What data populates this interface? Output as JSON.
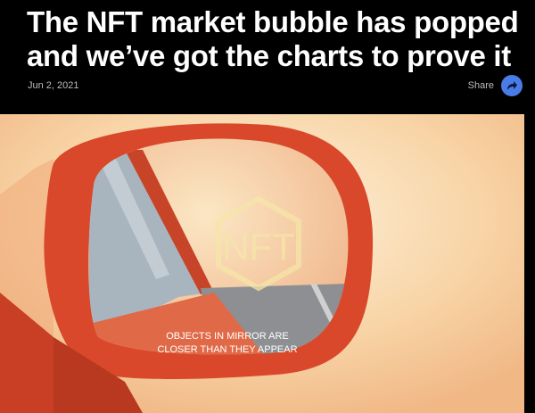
{
  "article": {
    "title": "The NFT market bubble has popped and we’ve got the charts to prove it",
    "date": "Jun 2, 2021",
    "share_label": "Share"
  },
  "hero": {
    "mirror_logo": "NFT",
    "mirror_text_line1": "OBJECTS IN MIRROR ARE",
    "mirror_text_line2": "CLOSER THAN THEY APPEAR"
  },
  "colors": {
    "share_button": "#4a7ce8",
    "background": "#000000",
    "mirror_body": "#d9482b"
  }
}
